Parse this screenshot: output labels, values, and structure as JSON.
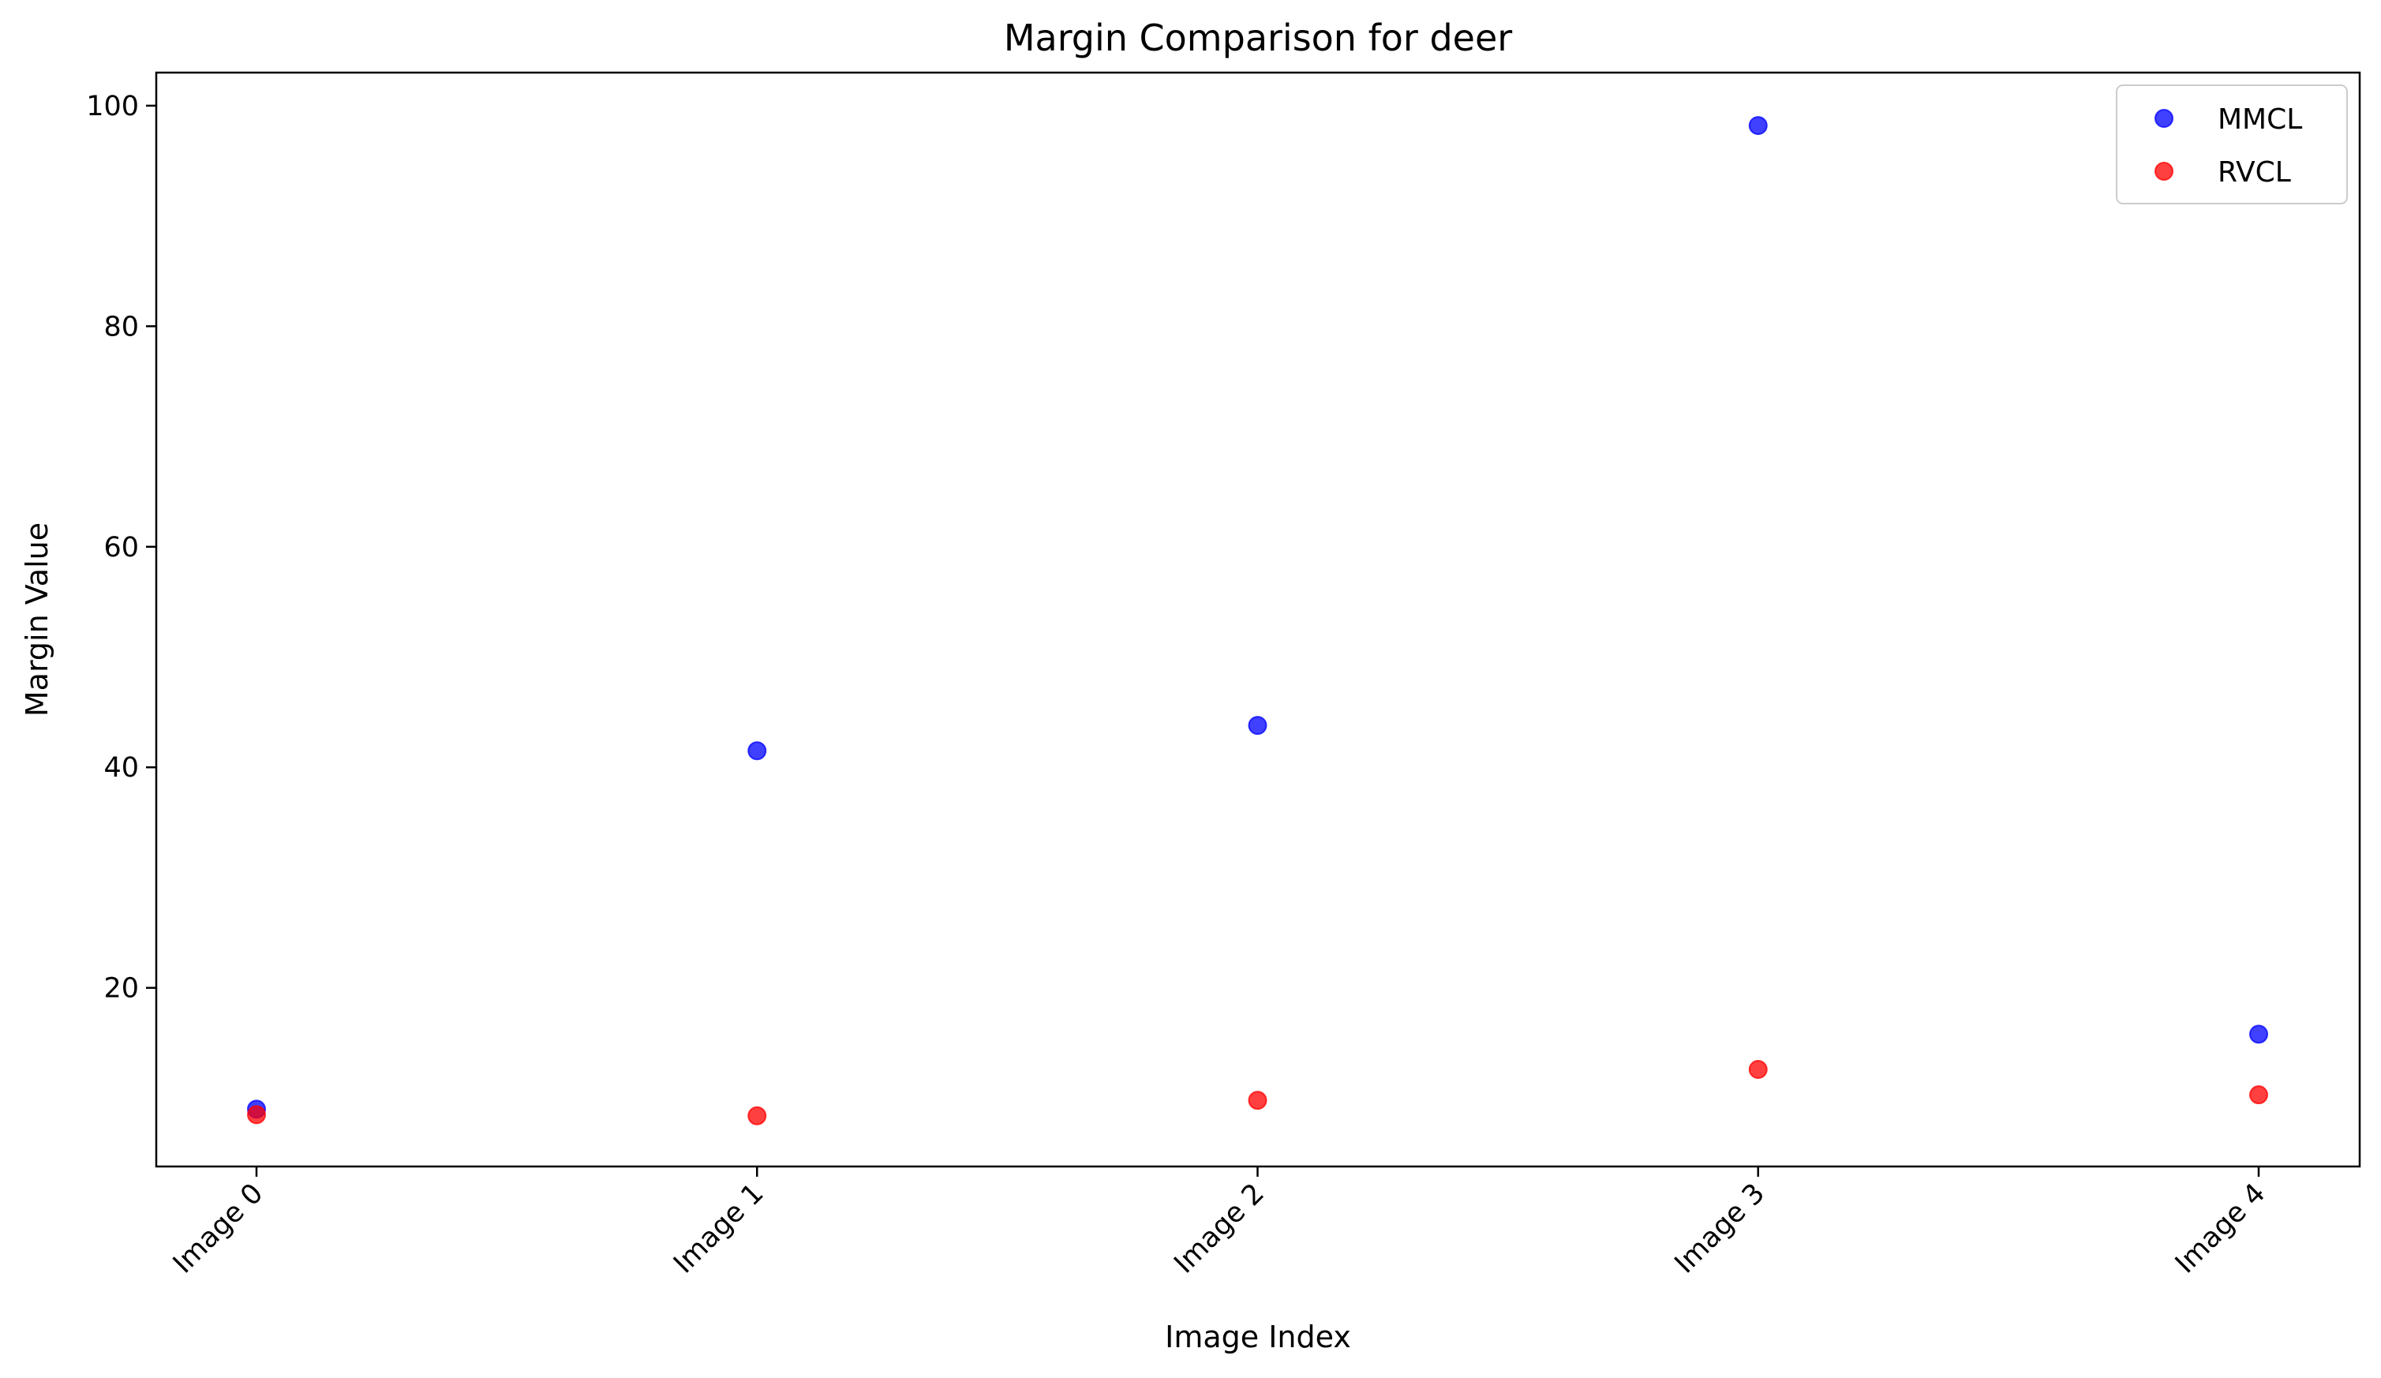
{
  "chart_data": {
    "type": "scatter",
    "title": "Margin Comparison for deer",
    "xlabel": "Image Index",
    "ylabel": "Margin Value",
    "categories": [
      "Image 0",
      "Image 1",
      "Image 2",
      "Image 3",
      "Image 4"
    ],
    "y_ticks": [
      20,
      40,
      60,
      80,
      100
    ],
    "ylim": [
      3.8,
      103
    ],
    "grid": false,
    "legend_position": "top-right",
    "series": [
      {
        "name": "MMCL",
        "color": "#0000ff",
        "values": [
          9.0,
          41.5,
          43.8,
          98.2,
          15.8
        ]
      },
      {
        "name": "RVCL",
        "color": "#ff0000",
        "values": [
          8.5,
          8.4,
          9.8,
          12.6,
          10.3
        ]
      }
    ]
  }
}
